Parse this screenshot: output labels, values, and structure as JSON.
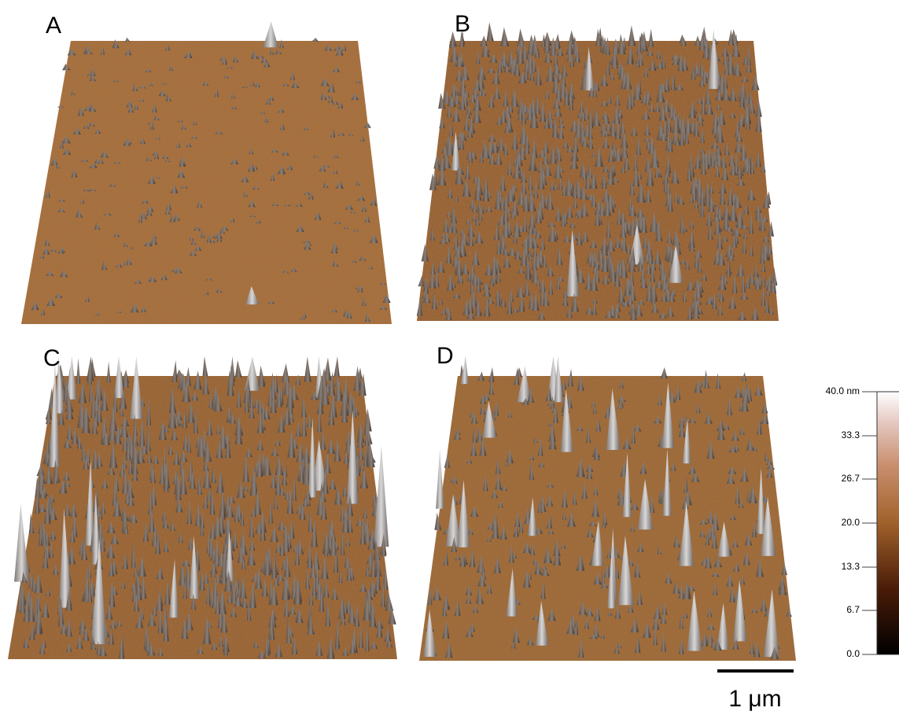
{
  "panels": [
    {
      "label": "A"
    },
    {
      "label": "B"
    },
    {
      "label": "C"
    },
    {
      "label": "D"
    }
  ],
  "colorbar": {
    "lim": [
      0,
      40
    ],
    "ticks": [
      {
        "value": 0,
        "label": "0.0"
      },
      {
        "value": 6.7,
        "label": "6.7"
      },
      {
        "value": 13.3,
        "label": "13.3"
      },
      {
        "value": 20,
        "label": "20.0"
      },
      {
        "value": 26.7,
        "label": "26.7"
      },
      {
        "value": 33.3,
        "label": "33.3"
      },
      {
        "value": 40,
        "label": "40.0 nm"
      }
    ]
  },
  "scale_bar": {
    "label": "1 μm"
  }
}
